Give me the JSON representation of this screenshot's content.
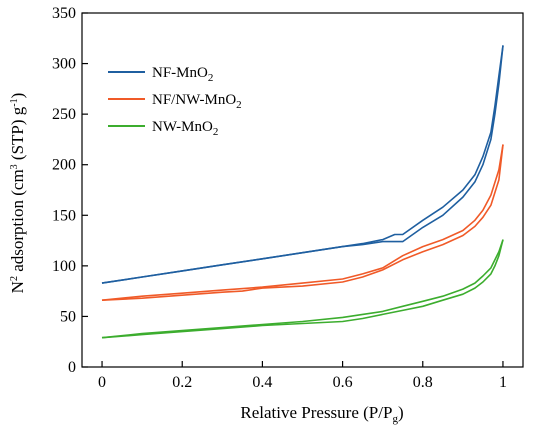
{
  "chart_data": {
    "type": "line",
    "xlabel": {
      "main": "Relative Pressure (P/P",
      "sub": "g",
      "tail": ")"
    },
    "ylabel": {
      "pre": "N",
      "sup1": "2",
      "mid": " adsorption (cm",
      "sup2": "3",
      "post": " (STP) g",
      "sup3": "-1",
      "tail": ")"
    },
    "xlim": [
      -0.05,
      1.05
    ],
    "ylim": [
      0,
      350
    ],
    "xticks": [
      0,
      0.2,
      0.4,
      0.6,
      0.8,
      1
    ],
    "xtick_labels": [
      "0",
      "0.2",
      "0.4",
      "0.6",
      "0.8",
      "1"
    ],
    "yticks": [
      0,
      50,
      100,
      150,
      200,
      250,
      300,
      350
    ],
    "ytick_labels": [
      "0",
      "50",
      "100",
      "150",
      "200",
      "250",
      "300",
      "350"
    ],
    "legend_position": "top-left",
    "series": [
      {
        "name": "NF-MnO",
        "name_sub": "2",
        "color": "#1f5fa0",
        "adsorption": {
          "x": [
            0,
            0.1,
            0.2,
            0.3,
            0.4,
            0.5,
            0.6,
            0.65,
            0.7,
            0.75,
            0.8,
            0.85,
            0.9,
            0.93,
            0.95,
            0.97,
            0.98,
            0.99,
            1.0
          ],
          "y": [
            83,
            89,
            95,
            101,
            107,
            113,
            119,
            121,
            124,
            124,
            138,
            150,
            168,
            183,
            200,
            225,
            250,
            280,
            318
          ]
        },
        "desorption": {
          "x": [
            1.0,
            0.99,
            0.98,
            0.97,
            0.95,
            0.93,
            0.9,
            0.85,
            0.8,
            0.75,
            0.73,
            0.7,
            0.65,
            0.6,
            0.5,
            0.4,
            0.3,
            0.2,
            0.1,
            0
          ],
          "y": [
            318,
            288,
            258,
            232,
            208,
            190,
            175,
            158,
            145,
            131,
            131,
            126,
            122,
            119,
            113,
            107,
            101,
            95,
            89,
            83
          ]
        }
      },
      {
        "name": "NF/NW-MnO",
        "name_sub": "2",
        "color": "#f05a28",
        "adsorption": {
          "x": [
            0,
            0.1,
            0.2,
            0.3,
            0.35,
            0.4,
            0.5,
            0.6,
            0.65,
            0.7,
            0.75,
            0.8,
            0.85,
            0.9,
            0.93,
            0.95,
            0.97,
            0.99,
            1.0
          ],
          "y": [
            66,
            68,
            71,
            74,
            75,
            78,
            80,
            84,
            89,
            96,
            106,
            114,
            121,
            130,
            139,
            148,
            160,
            185,
            220
          ]
        },
        "desorption": {
          "x": [
            1.0,
            0.99,
            0.97,
            0.95,
            0.93,
            0.9,
            0.85,
            0.8,
            0.75,
            0.7,
            0.65,
            0.6,
            0.5,
            0.4,
            0.3,
            0.2,
            0.1,
            0
          ],
          "y": [
            220,
            195,
            170,
            155,
            145,
            135,
            126,
            119,
            110,
            98,
            92,
            87,
            83,
            79,
            76,
            73,
            70,
            66
          ]
        }
      },
      {
        "name": "NW-MnO",
        "name_sub": "2",
        "color": "#3cad2e",
        "adsorption": {
          "x": [
            0,
            0.1,
            0.2,
            0.3,
            0.4,
            0.5,
            0.6,
            0.65,
            0.7,
            0.75,
            0.8,
            0.85,
            0.9,
            0.93,
            0.95,
            0.97,
            0.98,
            0.99,
            1.0
          ],
          "y": [
            29,
            32,
            35,
            38,
            41,
            43,
            45,
            48,
            52,
            56,
            60,
            66,
            72,
            78,
            84,
            92,
            100,
            110,
            126
          ]
        },
        "desorption": {
          "x": [
            1.0,
            0.99,
            0.97,
            0.95,
            0.93,
            0.9,
            0.85,
            0.8,
            0.75,
            0.7,
            0.65,
            0.6,
            0.5,
            0.4,
            0.3,
            0.2,
            0.1,
            0
          ],
          "y": [
            126,
            114,
            98,
            90,
            83,
            77,
            70,
            65,
            60,
            55,
            52,
            49,
            45,
            42,
            39,
            36,
            33,
            29
          ]
        }
      }
    ]
  }
}
